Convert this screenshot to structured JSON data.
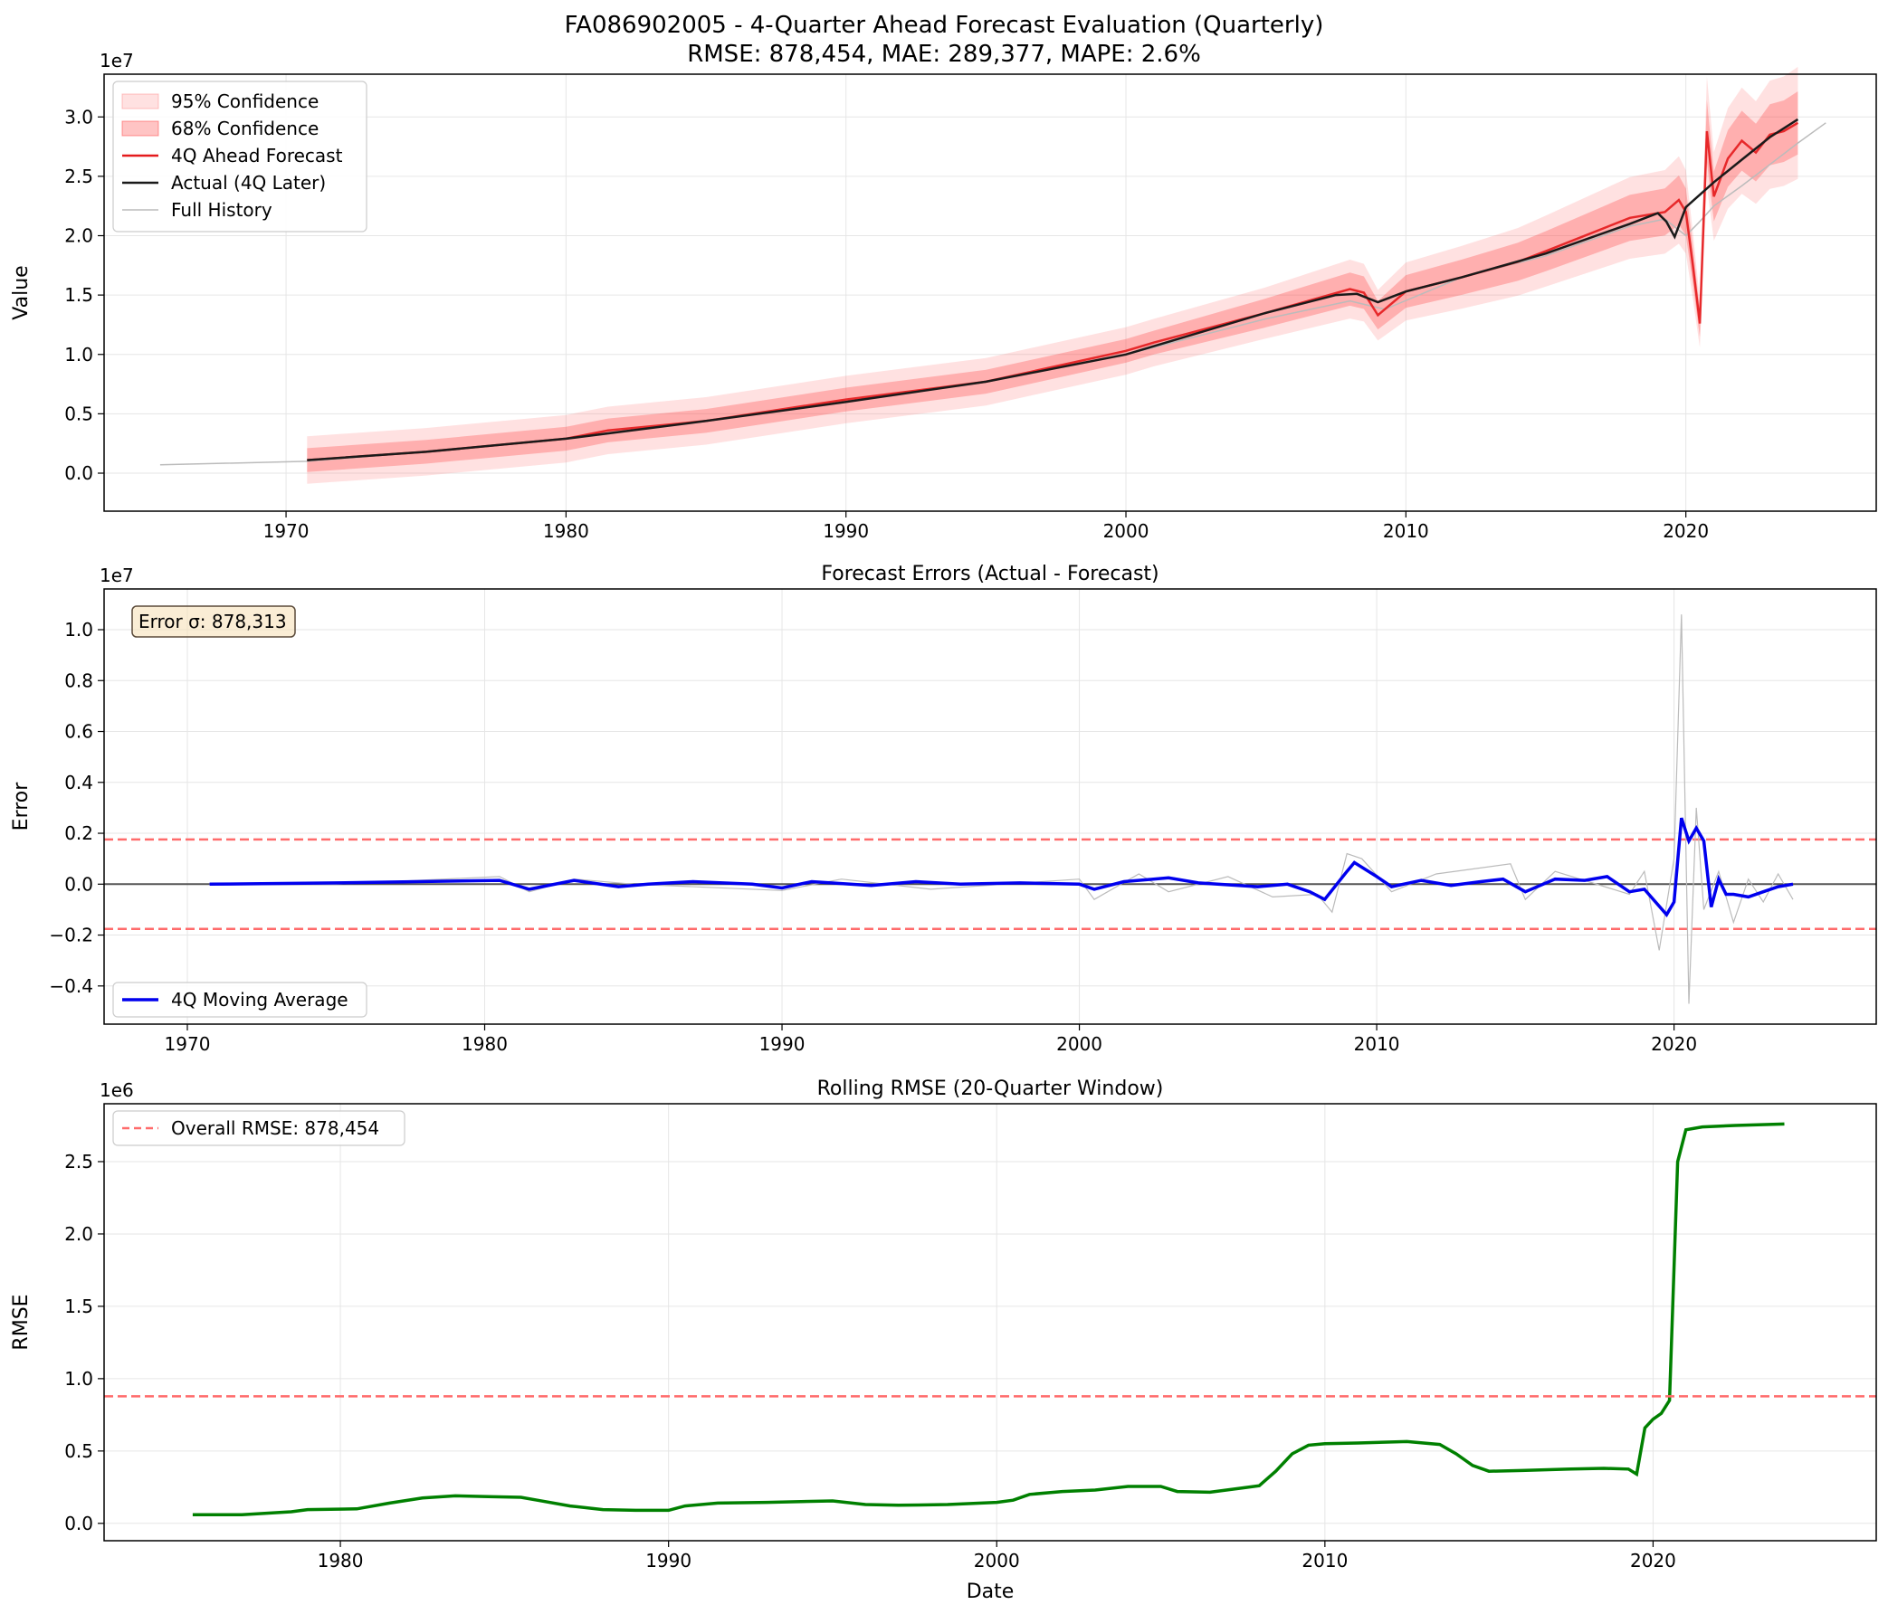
{
  "figure": {
    "title": "FA086902005 - 4-Quarter Ahead Forecast Evaluation (Quarterly)",
    "subtitle": "RMSE: 878,454, MAE: 289,377, MAPE: 2.6%"
  },
  "chart_data": [
    {
      "type": "line",
      "title": "",
      "xlabel": "",
      "ylabel": "Value",
      "offset_label": "1e7",
      "x_unit": "year",
      "xlim": [
        1963.5,
        2026.8
      ],
      "ylim": [
        -3200000.0,
        33600000.0
      ],
      "xticks": [
        1970,
        1980,
        1990,
        2000,
        2010,
        2020
      ],
      "yticks": [
        0,
        5000000,
        10000000,
        15000000,
        20000000,
        25000000,
        30000000
      ],
      "ytick_labels": [
        "0.0",
        "0.5",
        "1.0",
        "1.5",
        "2.0",
        "2.5",
        "3.0"
      ],
      "grid": true,
      "legend_position": "top-left",
      "legend": [
        "95% Confidence",
        "68% Confidence",
        "4Q Ahead Forecast",
        "Actual (4Q Later)",
        "Full History"
      ],
      "colors": {
        "ci95": "#ff6b6b",
        "ci68": "#ff3b3b",
        "forecast": "#e41a1c",
        "actual": "#1a1a1a",
        "history": "#bbbbbb"
      },
      "series": [
        {
          "name": "Full History",
          "x": [
            1965.5,
            1970.75,
            1975,
            1980,
            1985,
            1990,
            1995,
            2000,
            2005,
            2008,
            2009.25,
            2012,
            2015,
            2018,
            2019.25,
            2020.0,
            2020.5,
            2021.0,
            2022.0,
            2023.0,
            2024.0,
            2025.0
          ],
          "y": [
            700000,
            1000000,
            1800000,
            2900000,
            4400000,
            6000000,
            7700000,
            10000000,
            13000000,
            14500000,
            13800000,
            16500000,
            18300000,
            20800000,
            21400000,
            20000000,
            21200000,
            22500000,
            24200000,
            26000000,
            27800000,
            29500000
          ]
        },
        {
          "name": "Actual (4Q Later)",
          "x": [
            1970.75,
            1975,
            1980,
            1985,
            1990,
            1995,
            2000,
            2005,
            2007.5,
            2008.25,
            2009.0,
            2010.0,
            2012.0,
            2015.0,
            2018.0,
            2019.0,
            2019.3,
            2019.6,
            2020.0,
            2021.0,
            2022.0,
            2023.0,
            2024.0
          ],
          "y": [
            1100000,
            1800000,
            2900000,
            4400000,
            6000000,
            7700000,
            10000000,
            13500000,
            15000000,
            15100000,
            14400000,
            15300000,
            16500000,
            18500000,
            21000000,
            21900000,
            21200000,
            19900000,
            22400000,
            24500000,
            26400000,
            28300000,
            29800000
          ]
        },
        {
          "name": "4Q Ahead Forecast",
          "x": [
            1970.75,
            1975,
            1980,
            1981.5,
            1985,
            1990,
            1995,
            2000,
            2001,
            2005,
            2008,
            2008.5,
            2009.0,
            2010.0,
            2012.0,
            2014.0,
            2015.0,
            2018.0,
            2019.25,
            2019.75,
            2020.0,
            2020.25,
            2020.5,
            2020.75,
            2021.0,
            2021.5,
            2022.0,
            2022.5,
            2023.0,
            2023.5,
            2024.0
          ],
          "y": [
            1100000,
            1800000,
            2900000,
            3600000,
            4400000,
            6200000,
            7700000,
            10300000,
            11000000,
            13500000,
            15500000,
            15200000,
            13300000,
            15300000,
            16500000,
            17800000,
            18700000,
            21500000,
            22000000,
            23000000,
            22000000,
            17500000,
            12600000,
            28800000,
            23300000,
            26500000,
            28000000,
            27000000,
            28500000,
            28800000,
            29500000
          ]
        }
      ],
      "band_relative_width": {
        "ci68": 0.09,
        "ci95": 0.16,
        "ci68_min": 1000000,
        "ci95_min": 2000000
      }
    },
    {
      "type": "line",
      "title": "Forecast Errors (Actual - Forecast)",
      "xlabel": "",
      "ylabel": "Error",
      "offset_label": "1e7",
      "x_unit": "year",
      "xlim": [
        1967.2,
        2026.8
      ],
      "ylim": [
        -5500000.0,
        11600000.0
      ],
      "xticks": [
        1970,
        1980,
        1990,
        2000,
        2010,
        2020
      ],
      "yticks": [
        -4000000,
        -2000000,
        0,
        2000000,
        4000000,
        6000000,
        8000000,
        10000000
      ],
      "ytick_labels": [
        "−0.4",
        "−0.2",
        "0.0",
        "0.2",
        "0.4",
        "0.6",
        "0.8",
        "1.0"
      ],
      "grid": true,
      "legend_position": "bottom-left",
      "legend": [
        "4Q Moving Average"
      ],
      "annotation": "Error σ: 878,313",
      "hlines": [
        {
          "y": 0,
          "color": "#555555",
          "style": "solid"
        },
        {
          "y": 1756626,
          "color": "#ff6b6b",
          "style": "dashed"
        },
        {
          "y": -1756626,
          "color": "#ff6b6b",
          "style": "dashed"
        }
      ],
      "colors": {
        "raw": "#bbbbbb",
        "ma": "#0000ee"
      },
      "series": [
        {
          "name": "Raw error",
          "x": [
            1970.75,
            1975,
            1980.5,
            1981.5,
            1983,
            1985,
            1990,
            1992,
            1995,
            2000,
            2000.5,
            2002,
            2003,
            2005,
            2006.5,
            2008.0,
            2008.5,
            2009.0,
            2009.5,
            2010.5,
            2012,
            2014.5,
            2015,
            2016,
            2018.5,
            2019.0,
            2019.5,
            2020.0,
            2020.25,
            2020.5,
            2020.75,
            2021.0,
            2021.5,
            2022.0,
            2022.5,
            2023.0,
            2023.5,
            2024.0
          ],
          "y": [
            0,
            0,
            300000,
            -300000,
            200000,
            0,
            -250000,
            200000,
            -200000,
            200000,
            -600000,
            400000,
            -300000,
            300000,
            -500000,
            -400000,
            -1100000,
            1200000,
            1000000,
            -300000,
            400000,
            800000,
            -600000,
            500000,
            -400000,
            500000,
            -2600000,
            1000000,
            10600000,
            -4700000,
            3000000,
            -1000000,
            500000,
            -1500000,
            200000,
            -700000,
            400000,
            -600000
          ]
        },
        {
          "name": "4Q Moving Average",
          "x": [
            1970.75,
            1975,
            1980.5,
            1981.5,
            1983.0,
            1984.5,
            1985.5,
            1987.0,
            1989.0,
            1990.0,
            1991.0,
            1993.0,
            1994.5,
            1996.0,
            1998.0,
            2000.0,
            2000.5,
            2001.5,
            2003.0,
            2004.0,
            2006.0,
            2007.0,
            2007.75,
            2008.25,
            2009.0,
            2009.25,
            2010.0,
            2010.5,
            2011.5,
            2012.5,
            2013.5,
            2014.25,
            2015.0,
            2016.0,
            2017.0,
            2017.75,
            2018.5,
            2019.0,
            2019.75,
            2020.0,
            2020.25,
            2020.5,
            2020.75,
            2021.0,
            2021.25,
            2021.5,
            2021.75,
            2022.0,
            2022.5,
            2023.0,
            2023.5,
            2024.0
          ],
          "y": [
            0,
            50000,
            150000,
            -200000,
            150000,
            -100000,
            0,
            100000,
            0,
            -150000,
            100000,
            -50000,
            100000,
            0,
            50000,
            0,
            -200000,
            100000,
            250000,
            50000,
            -100000,
            0,
            -300000,
            -600000,
            500000,
            850000,
            300000,
            -100000,
            150000,
            -50000,
            100000,
            200000,
            -300000,
            200000,
            150000,
            300000,
            -300000,
            -200000,
            -1200000,
            -700000,
            2600000,
            1700000,
            2200000,
            1700000,
            -900000,
            200000,
            -400000,
            -400000,
            -500000,
            -300000,
            -100000,
            0
          ]
        }
      ]
    },
    {
      "type": "line",
      "title": "Rolling RMSE (20-Quarter Window)",
      "xlabel": "Date",
      "ylabel": "RMSE",
      "offset_label": "1e6",
      "x_unit": "year",
      "xlim": [
        1972.8,
        2026.8
      ],
      "ylim": [
        -120000,
        2900000
      ],
      "xticks": [
        1980,
        1990,
        2000,
        2010,
        2020
      ],
      "yticks": [
        0,
        500000,
        1000000,
        1500000,
        2000000,
        2500000
      ],
      "ytick_labels": [
        "0.0",
        "0.5",
        "1.0",
        "1.5",
        "2.0",
        "2.5"
      ],
      "grid": true,
      "legend_position": "top-left",
      "legend": [
        "Overall RMSE: 878,454"
      ],
      "hlines": [
        {
          "y": 878454,
          "color": "#ff6b6b",
          "style": "dashed"
        }
      ],
      "colors": {
        "rmse": "#008000"
      },
      "series": [
        {
          "name": "Rolling RMSE",
          "x": [
            1975.5,
            1977.0,
            1978.5,
            1979.0,
            1980.5,
            1981.5,
            1982.5,
            1983.5,
            1984.5,
            1985.5,
            1986.0,
            1987.0,
            1988.0,
            1989.0,
            1990.0,
            1990.5,
            1991.5,
            1993.0,
            1995.0,
            1996.0,
            1997.0,
            1998.5,
            2000.0,
            2000.5,
            2001.0,
            2002.0,
            2003.0,
            2004.0,
            2005.0,
            2005.5,
            2006.5,
            2007.5,
            2008.0,
            2008.5,
            2009.0,
            2009.5,
            2010.0,
            2011.0,
            2012.5,
            2013.5,
            2014.0,
            2014.5,
            2015.0,
            2016.0,
            2017.5,
            2018.5,
            2019.25,
            2019.5,
            2019.75,
            2020.0,
            2020.25,
            2020.5,
            2020.75,
            2021.0,
            2021.5,
            2022.5,
            2024.0
          ],
          "y": [
            60000,
            60000,
            80000,
            95000,
            100000,
            140000,
            175000,
            190000,
            185000,
            180000,
            160000,
            120000,
            95000,
            90000,
            90000,
            120000,
            140000,
            145000,
            155000,
            130000,
            125000,
            130000,
            145000,
            160000,
            200000,
            220000,
            230000,
            255000,
            255000,
            220000,
            215000,
            245000,
            260000,
            360000,
            480000,
            540000,
            550000,
            555000,
            565000,
            545000,
            480000,
            400000,
            360000,
            365000,
            375000,
            380000,
            375000,
            340000,
            660000,
            720000,
            760000,
            850000,
            2500000,
            2720000,
            2740000,
            2750000,
            2760000
          ]
        }
      ]
    }
  ]
}
